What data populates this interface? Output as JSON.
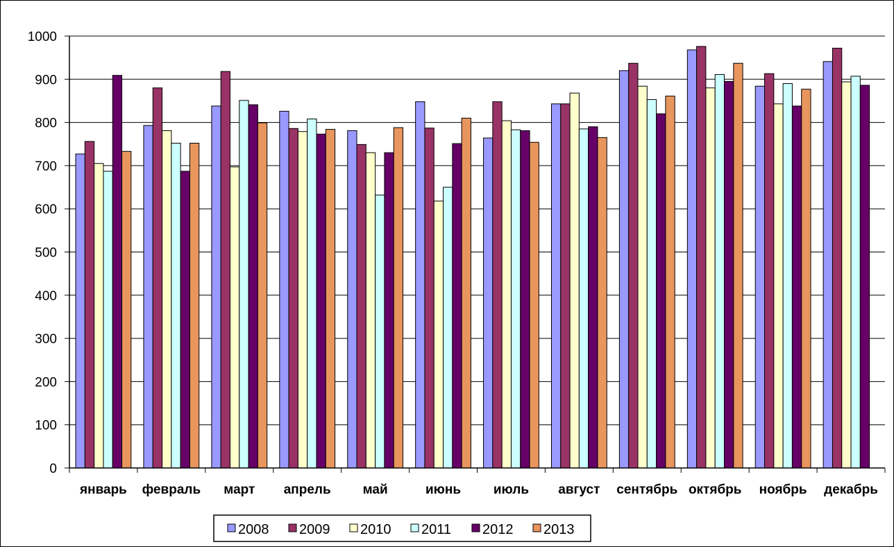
{
  "chart_data": {
    "type": "bar",
    "categories": [
      "январь",
      "февраль",
      "март",
      "апрель",
      "май",
      "июнь",
      "июль",
      "август",
      "сентябрь",
      "октябрь",
      "ноябрь",
      "декабрь"
    ],
    "series": [
      {
        "name": "2008",
        "color": "#9999ff",
        "values": [
          727,
          793,
          838,
          826,
          781,
          848,
          764,
          843,
          920,
          968,
          884,
          941
        ]
      },
      {
        "name": "2009",
        "color": "#993366",
        "values": [
          756,
          880,
          918,
          786,
          749,
          787,
          848,
          843,
          937,
          976,
          913,
          972
        ]
      },
      {
        "name": "2010",
        "color": "#ffffcc",
        "values": [
          705,
          781,
          697,
          779,
          730,
          618,
          804,
          868,
          884,
          880,
          843,
          894
        ]
      },
      {
        "name": "2011",
        "color": "#ccffff",
        "values": [
          687,
          752,
          851,
          808,
          632,
          650,
          783,
          785,
          853,
          911,
          890,
          907
        ]
      },
      {
        "name": "2012",
        "color": "#660066",
        "values": [
          909,
          687,
          841,
          773,
          730,
          751,
          781,
          790,
          820,
          895,
          838,
          886
        ]
      },
      {
        "name": "2013",
        "color": "#e8955e",
        "values": [
          733,
          752,
          799,
          784,
          788,
          810,
          754,
          765,
          861,
          937,
          877,
          null
        ]
      }
    ],
    "y_ticks": [
      "0",
      "100",
      "200",
      "300",
      "400",
      "500",
      "600",
      "700",
      "800",
      "900",
      "1000"
    ],
    "ylim": [
      0,
      1000
    ],
    "grid": true,
    "legend_position": "bottom",
    "title": "",
    "xlabel": "",
    "ylabel": ""
  }
}
